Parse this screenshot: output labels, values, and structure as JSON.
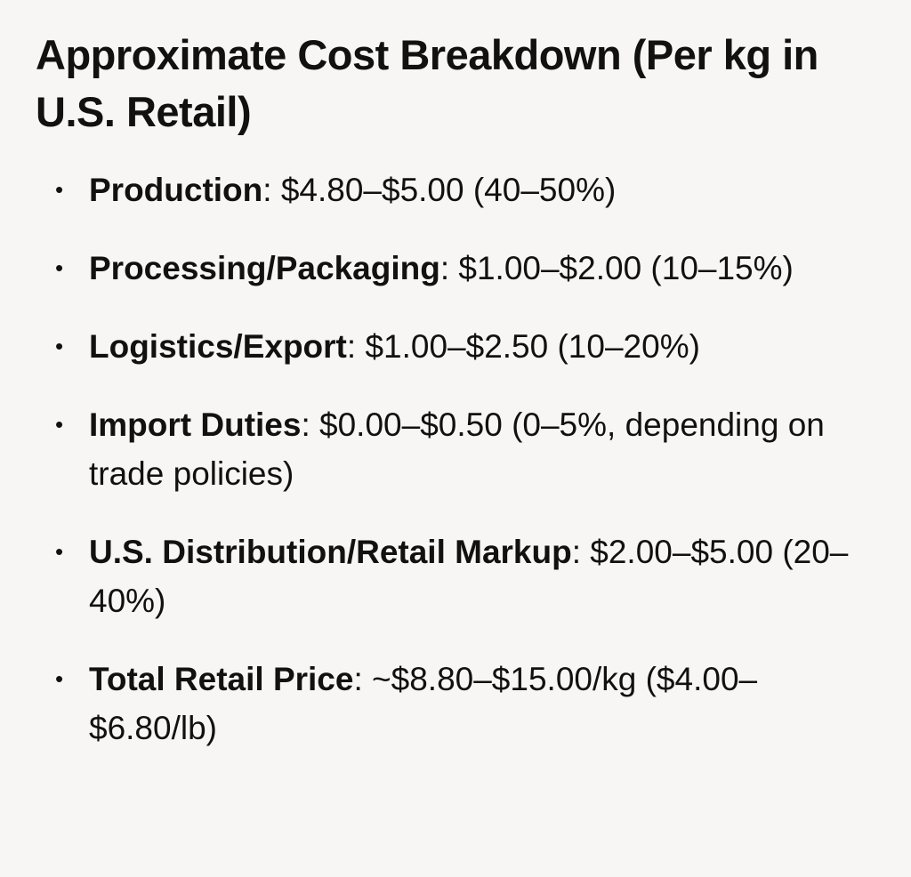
{
  "document": {
    "title": "Approximate Cost Breakdown (Per kg in U.S. Retail)",
    "items": [
      {
        "term": "Production",
        "separator": ":",
        "text": " $4.80–$5.00 (40–50%)"
      },
      {
        "term": "Processing/Packaging",
        "separator": ":",
        "text": " $1.00–$2.00 (10–15%)"
      },
      {
        "term": "Logistics/Export",
        "separator": ":",
        "text": " $1.00–$2.50 (10–20%)"
      },
      {
        "term": "Import Duties",
        "separator": ":",
        "text": " $0.00–$0.50 (0–5%, depending on trade policies)"
      },
      {
        "term": "U.S. Distribution/Retail Markup",
        "separator": ":",
        "text": " $2.00–$5.00 (20–40%)"
      },
      {
        "term": "Total Retail Price",
        "separator": ":",
        "text": " ~$8.80–$15.00/kg ($4.00–$6.80/lb)"
      }
    ]
  }
}
